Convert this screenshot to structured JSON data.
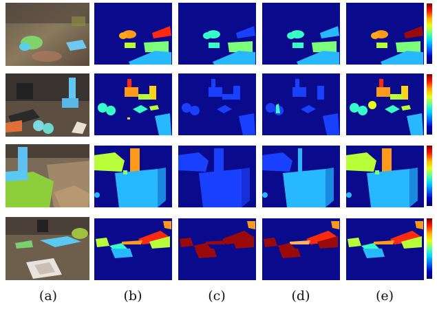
{
  "figure": {
    "captions": [
      "(a)",
      "(b)",
      "(c)",
      "(d)",
      "(e)"
    ],
    "colors": {
      "background_blue": "#0a0a8c",
      "cyan": "#27b8ff",
      "light_blue": "#3aa6ff",
      "green_yellow": "#b8ff3a",
      "teal": "#36ffc8",
      "orange": "#ff9a1a",
      "red": "#ff2a10",
      "dark_red": "#9a0a0a",
      "mid_blue": "#1a40ff"
    },
    "rows": 4
  }
}
